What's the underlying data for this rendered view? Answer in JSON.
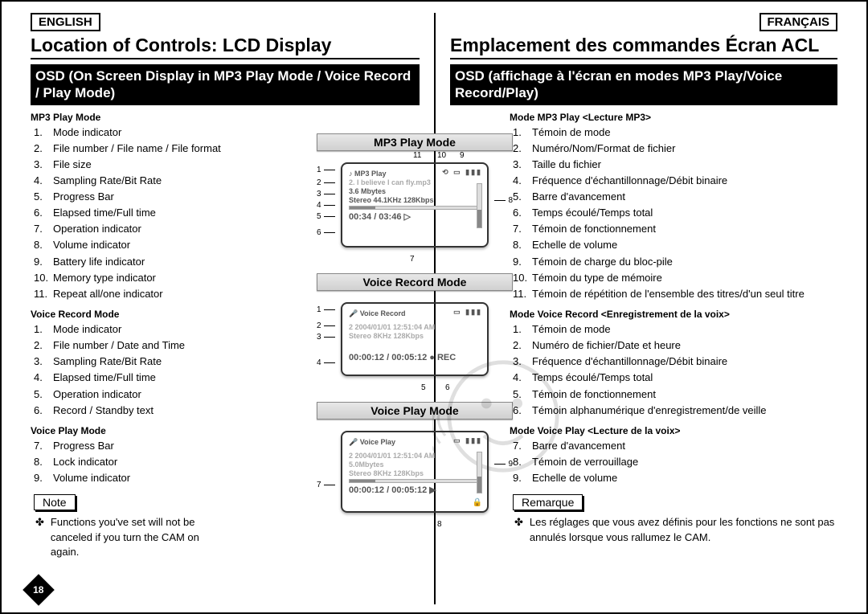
{
  "page_number": "18",
  "left": {
    "lang": "ENGLISH",
    "title": "Location of Controls: LCD Display",
    "subtitle": "OSD (On Screen Display in MP3 Play Mode / Voice Record / Play Mode)",
    "mp3_heading": "MP3 Play Mode",
    "mp3_items": [
      "Mode indicator",
      "File number / File name / File format",
      "File size",
      "Sampling Rate/Bit Rate",
      "Progress Bar",
      "Elapsed time/Full time",
      "Operation indicator",
      "Volume indicator",
      "Battery life indicator",
      "Memory type indicator",
      "Repeat all/one indicator"
    ],
    "vrec_heading": "Voice Record Mode",
    "vrec_items": [
      "Mode indicator",
      "File number / Date and Time",
      "Sampling Rate/Bit Rate",
      "Elapsed time/Full time",
      "Operation indicator",
      "Record / Standby text"
    ],
    "vplay_heading": "Voice Play Mode",
    "vplay_items": [
      "Progress Bar",
      "Lock indicator",
      "Volume indicator"
    ],
    "note_label": "Note",
    "note_text": "Functions you've set will not be canceled if you turn the CAM on again."
  },
  "right": {
    "lang": "FRANÇAIS",
    "title": "Emplacement des commandes Écran ACL",
    "subtitle": "OSD (affichage à l'écran en modes MP3 Play/Voice Record/Play)",
    "mp3_heading": "Mode MP3 Play <Lecture MP3>",
    "mp3_items": [
      "Témoin de mode",
      "Numéro/Nom/Format de fichier",
      "Taille du fichier",
      "Fréquence d'échantillonnage/Débit binaire",
      "Barre d'avancement",
      "Temps écoulé/Temps total",
      "Témoin de fonctionnement",
      "Echelle de volume",
      "Témoin de charge du bloc-pile",
      "Témoin du type de mémoire",
      "Témoin de répétition de l'ensemble des titres/d'un seul titre"
    ],
    "vrec_heading": "Mode Voice Record <Enregistrement de la voix>",
    "vrec_items": [
      "Témoin de mode",
      "Numéro de fichier/Date et heure",
      "Fréquence d'échantillonnage/Débit binaire",
      "Temps écoulé/Temps total",
      "Témoin de fonctionnement",
      "Témoin alphanumérique d'enregistrement/de veille"
    ],
    "vplay_heading": "Mode Voice Play <Lecture de la voix>",
    "vplay_items": [
      "Barre d'avancement",
      "Témoin de verrouillage",
      "Echelle de volume"
    ],
    "note_label": "Remarque",
    "note_text": "Les réglages que vous avez définis pour les fonctions ne sont pas annulés lorsque vous rallumez le CAM."
  },
  "diagrams": {
    "mp3": {
      "title": "MP3 Play Mode",
      "mode": "♪ MP3 Play",
      "file": "2.  I believe I can fly.mp3",
      "size": "3.6 Mbytes",
      "rate": "Stereo 44.1KHz 128Kbps",
      "time": "00:34 / 03:46 ▷",
      "left_callouts": [
        "1",
        "2",
        "3",
        "4",
        "5",
        "6"
      ],
      "top_callouts": [
        "11",
        "10",
        "9"
      ],
      "right_callouts": [
        "8"
      ],
      "bottom_callouts": [
        "7"
      ]
    },
    "vrec": {
      "title": "Voice Record Mode",
      "mode": "🎤 Voice Record",
      "file": "2  2004/01/01  12:51:04 AM",
      "rate": "Stereo  8KHz  128Kbps",
      "time": "00:00:12 / 00:05:12 ● REC",
      "left_callouts": [
        "1",
        "2",
        "3",
        "4"
      ],
      "bottom_callouts": [
        "5",
        "6"
      ]
    },
    "vplay": {
      "title": "Voice Play Mode",
      "mode": "🎤 Voice Play",
      "file": "2  2004/01/01  12:51:04 AM",
      "size": "5.0Mbytes",
      "rate": "Stereo  8KHz  128Kbps",
      "time": "00:00:12 / 00:05:12  ▶",
      "left_callouts": [
        "7"
      ],
      "right_callouts": [
        "9"
      ],
      "bottom_callouts": [
        "8"
      ]
    }
  }
}
